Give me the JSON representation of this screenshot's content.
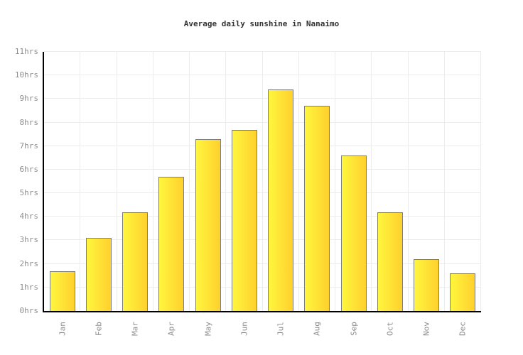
{
  "chart_data": {
    "type": "bar",
    "title": "Average daily sunshine in Nanaimo",
    "categories": [
      "Jan",
      "Feb",
      "Mar",
      "Apr",
      "May",
      "Jun",
      "Jul",
      "Aug",
      "Sep",
      "Oct",
      "Nov",
      "Dec"
    ],
    "values": [
      1.7,
      3.1,
      4.2,
      5.7,
      7.3,
      7.7,
      9.4,
      8.7,
      6.6,
      4.2,
      2.2,
      1.6
    ],
    "unit": "hrs",
    "ylabel": "",
    "xlabel": "",
    "ylim": [
      0,
      11
    ],
    "y_tick_labels": [
      "0hrs",
      "1hrs",
      "2hrs",
      "3hrs",
      "4hrs",
      "5hrs",
      "6hrs",
      "7hrs",
      "8hrs",
      "9hrs",
      "10hrs",
      "11hrs"
    ],
    "grid": true,
    "legend": "none",
    "colors": {
      "bar_gradient_left": "#fff63e",
      "bar_gradient_right": "#ffd02d",
      "bar_border": "#7d7d7d",
      "axis": "#000000",
      "gridline": "#ececec",
      "tick_label": "#8e8e8e",
      "title": "#333333",
      "background": "#ffffff"
    }
  }
}
